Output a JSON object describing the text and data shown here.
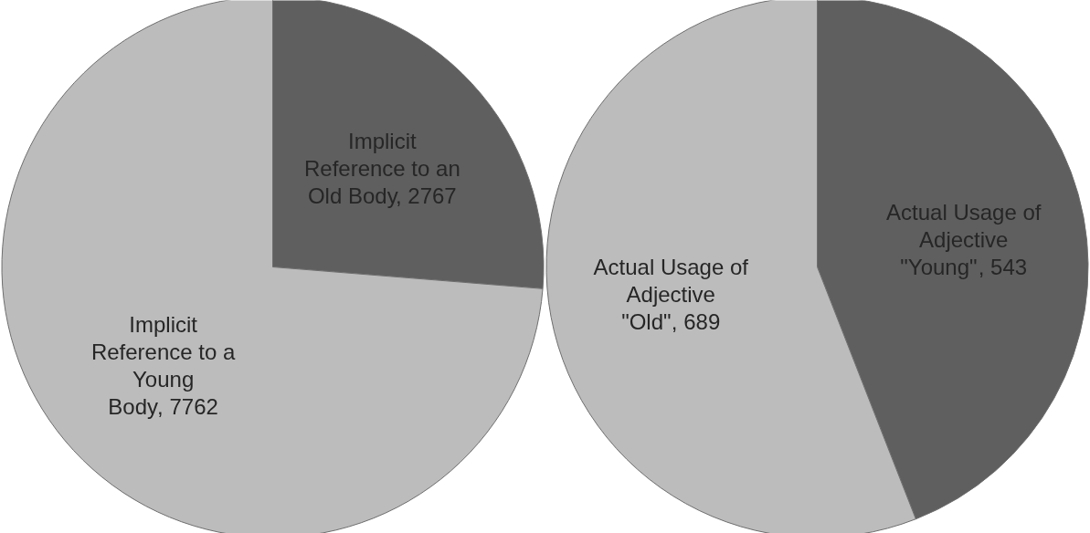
{
  "chart_data": [
    {
      "type": "pie",
      "categories": [
        "Implicit Reference to an Old Body",
        "Implicit Reference to a Young Body"
      ],
      "values": [
        2767,
        7762
      ],
      "colors": [
        "#5f5f5f",
        "#bcbcbc"
      ],
      "value_labels": [
        ", 2767",
        ", 7762"
      ]
    },
    {
      "type": "pie",
      "categories": [
        "Actual Usage of Adjective \"Young\"",
        "Actual Usage of Adjective \"Old\""
      ],
      "values": [
        543,
        689
      ],
      "colors": [
        "#5f5f5f",
        "#bcbcbc"
      ],
      "value_labels": [
        ", 543",
        ", 689"
      ]
    }
  ]
}
